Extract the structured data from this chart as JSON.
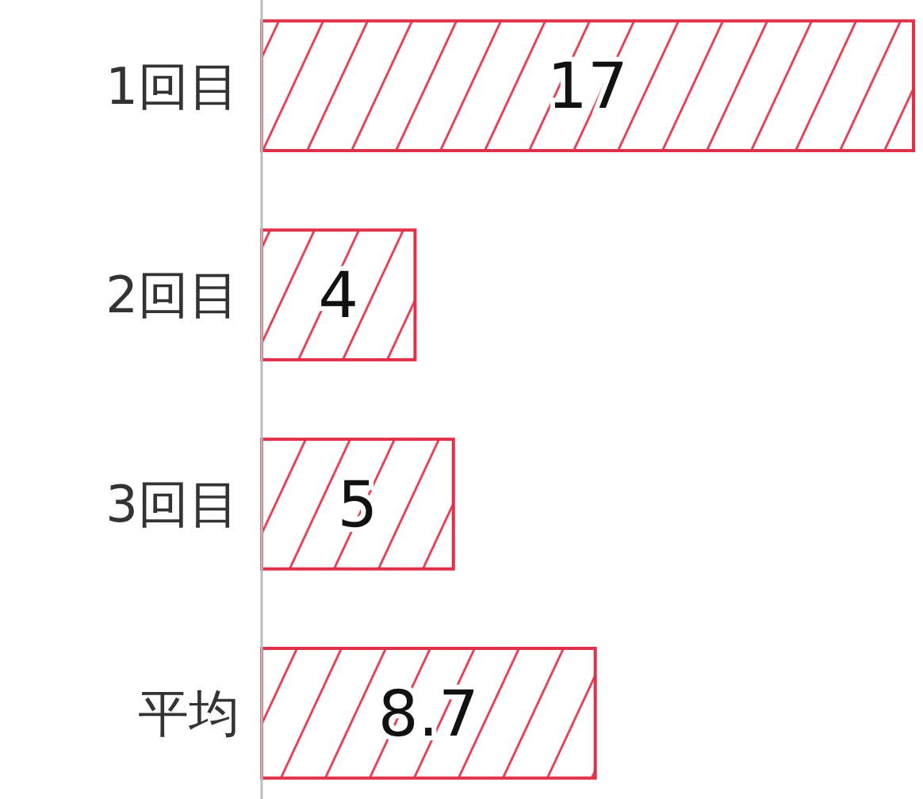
{
  "chart_data": {
    "type": "bar",
    "orientation": "horizontal",
    "categories": [
      "1回目",
      "2回目",
      "3回目",
      "平均"
    ],
    "values": [
      17,
      4,
      5,
      8.7
    ],
    "color": "#e0304a",
    "data_labels": true
  }
}
